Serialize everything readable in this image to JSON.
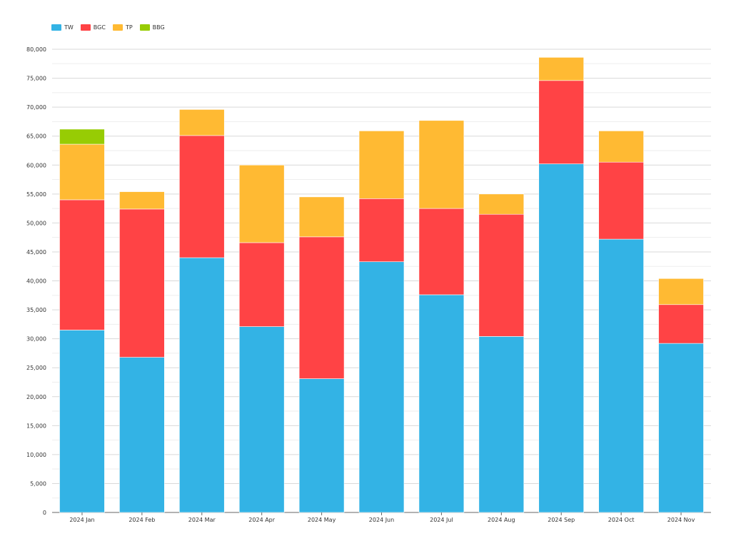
{
  "chart_data": {
    "type": "bar",
    "stacked": true,
    "categories": [
      "2024 Jan",
      "2024 Feb",
      "2024 Mar",
      "2024 Apr",
      "2024 May",
      "2024 Jun",
      "2024 Jul",
      "2024 Aug",
      "2024 Sep",
      "2024 Oct",
      "2024 Nov"
    ],
    "series": [
      {
        "name": "TW",
        "color": "#33b3e5",
        "values": [
          31500,
          26800,
          44000,
          32100,
          23100,
          43300,
          37600,
          30400,
          60200,
          47200,
          29200
        ]
      },
      {
        "name": "BGC",
        "color": "#ff4345",
        "values": [
          22500,
          25600,
          21100,
          14500,
          24500,
          10900,
          14900,
          21100,
          14400,
          13300,
          6700
        ]
      },
      {
        "name": "TP",
        "color": "#ffba33",
        "values": [
          9600,
          3000,
          4500,
          13400,
          6900,
          11700,
          15200,
          3500,
          4000,
          5400,
          4500
        ]
      },
      {
        "name": "BBG",
        "color": "#97cc04",
        "values": [
          2600,
          0,
          0,
          0,
          0,
          0,
          0,
          0,
          0,
          0,
          0
        ]
      }
    ],
    "ylim": [
      0,
      80000
    ],
    "yticks": [
      "0",
      "5,000",
      "10,000",
      "15,000",
      "20,000",
      "25,000",
      "30,000",
      "35,000",
      "40,000",
      "45,000",
      "50,000",
      "55,000",
      "60,000",
      "65,000",
      "70,000",
      "75,000",
      "80,000"
    ],
    "grid": true,
    "legend_position": "top-left",
    "title": "",
    "xlabel": "",
    "ylabel": ""
  }
}
